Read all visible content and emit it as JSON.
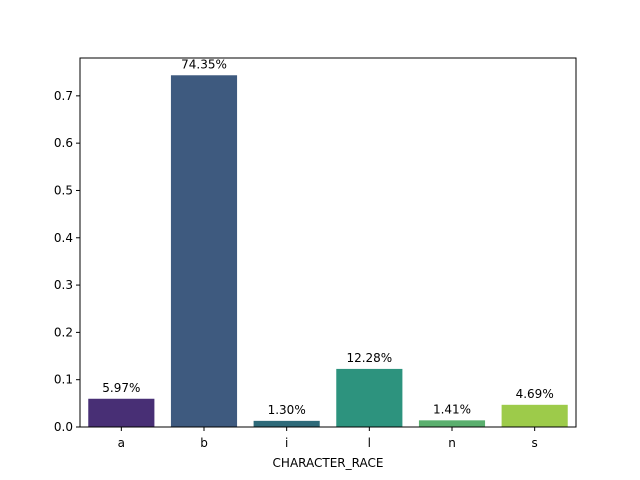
{
  "chart_data": {
    "type": "bar",
    "title": "",
    "xlabel": "CHARACTER_RACE",
    "ylabel": "",
    "categories": [
      "a",
      "b",
      "i",
      "l",
      "n",
      "s"
    ],
    "values": [
      0.0597,
      0.7435,
      0.013,
      0.1228,
      0.0141,
      0.0469
    ],
    "data_labels": [
      "5.97%",
      "74.35%",
      "1.30%",
      "12.28%",
      "1.41%",
      "4.69%"
    ],
    "colors": [
      "#482f75",
      "#3e5a7f",
      "#2e6a79",
      "#2d937e",
      "#5aaf6e",
      "#9dcb4a"
    ],
    "ylim": [
      0,
      0.78
    ],
    "yticks": [
      0.0,
      0.1,
      0.2,
      0.3,
      0.4,
      0.5,
      0.6,
      0.7
    ],
    "ytick_labels": [
      "0.0",
      "0.1",
      "0.2",
      "0.3",
      "0.4",
      "0.5",
      "0.6",
      "0.7"
    ],
    "grid": false,
    "legend": "none"
  }
}
